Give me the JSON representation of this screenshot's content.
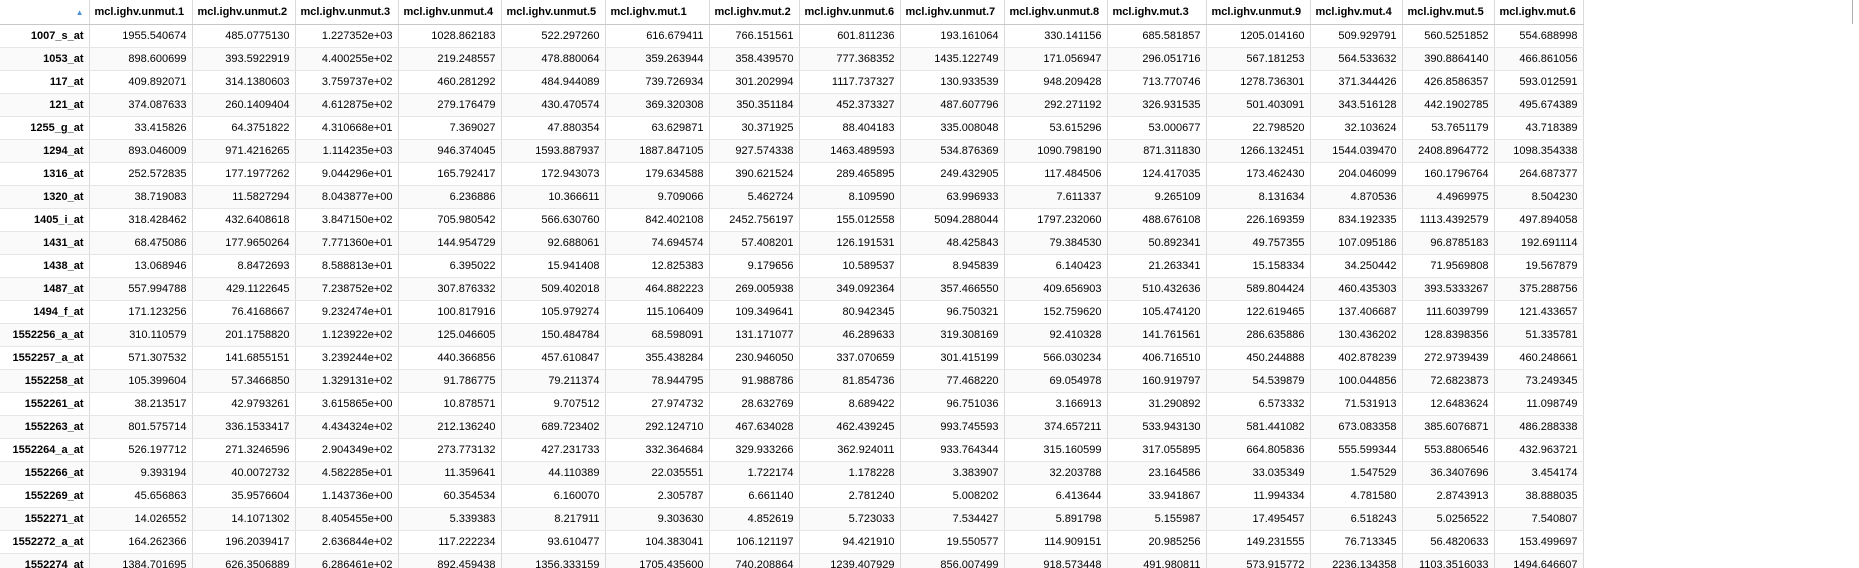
{
  "table": {
    "columns": [
      "mcl.ighv.unmut.1",
      "mcl.ighv.unmut.2",
      "mcl.ighv.unmut.3",
      "mcl.ighv.unmut.4",
      "mcl.ighv.unmut.5",
      "mcl.ighv.mut.1",
      "mcl.ighv.mut.2",
      "mcl.ighv.unmut.6",
      "mcl.ighv.unmut.7",
      "mcl.ighv.unmut.8",
      "mcl.ighv.mut.3",
      "mcl.ighv.unmut.9",
      "mcl.ighv.mut.4",
      "mcl.ighv.mut.5",
      "mcl.ighv.mut.6"
    ],
    "sorted_column_index": 0,
    "rows": [
      {
        "name": "1007_s_at",
        "values": [
          "1955.540674",
          "485.0775130",
          "1.227352e+03",
          "1028.862183",
          "522.297260",
          "616.679411",
          "766.151561",
          "601.811236",
          "193.161064",
          "330.141156",
          "685.581857",
          "1205.014160",
          "509.929791",
          "560.5251852",
          "554.688998"
        ]
      },
      {
        "name": "1053_at",
        "values": [
          "898.600699",
          "393.5922919",
          "4.400255e+02",
          "219.248557",
          "478.880064",
          "359.263944",
          "358.439570",
          "777.368352",
          "1435.122749",
          "171.056947",
          "296.051716",
          "567.181253",
          "564.533632",
          "390.8864140",
          "466.861056"
        ]
      },
      {
        "name": "117_at",
        "values": [
          "409.892071",
          "314.1380603",
          "3.759737e+02",
          "460.281292",
          "484.944089",
          "739.726934",
          "301.202994",
          "1117.737327",
          "130.933539",
          "948.209428",
          "713.770746",
          "1278.736301",
          "371.344426",
          "426.8586357",
          "593.012591"
        ]
      },
      {
        "name": "121_at",
        "values": [
          "374.087633",
          "260.1409404",
          "4.612875e+02",
          "279.176479",
          "430.470574",
          "369.320308",
          "350.351184",
          "452.373327",
          "487.607796",
          "292.271192",
          "326.931535",
          "501.403091",
          "343.516128",
          "442.1902785",
          "495.674389"
        ]
      },
      {
        "name": "1255_g_at",
        "values": [
          "33.415826",
          "64.3751822",
          "4.310668e+01",
          "7.369027",
          "47.880354",
          "63.629871",
          "30.371925",
          "88.404183",
          "335.008048",
          "53.615296",
          "53.000677",
          "22.798520",
          "32.103624",
          "53.7651179",
          "43.718389"
        ]
      },
      {
        "name": "1294_at",
        "values": [
          "893.046009",
          "971.4216265",
          "1.114235e+03",
          "946.374045",
          "1593.887937",
          "1887.847105",
          "927.574338",
          "1463.489593",
          "534.876369",
          "1090.798190",
          "871.311830",
          "1266.132451",
          "1544.039470",
          "2408.8964772",
          "1098.354338"
        ]
      },
      {
        "name": "1316_at",
        "values": [
          "252.572835",
          "177.1977262",
          "9.044296e+01",
          "165.792417",
          "172.943073",
          "179.634588",
          "390.621524",
          "289.465895",
          "249.432905",
          "117.484506",
          "124.417035",
          "173.462430",
          "204.046099",
          "160.1796764",
          "264.687377"
        ]
      },
      {
        "name": "1320_at",
        "values": [
          "38.719083",
          "11.5827294",
          "8.043877e+00",
          "6.236886",
          "10.366611",
          "9.709066",
          "5.462724",
          "8.109590",
          "63.996933",
          "7.611337",
          "9.265109",
          "8.131634",
          "4.870536",
          "4.4969975",
          "8.504230"
        ]
      },
      {
        "name": "1405_i_at",
        "values": [
          "318.428462",
          "432.6408618",
          "3.847150e+02",
          "705.980542",
          "566.630760",
          "842.402108",
          "2452.756197",
          "155.012558",
          "5094.288044",
          "1797.232060",
          "488.676108",
          "226.169359",
          "834.192335",
          "1113.4392579",
          "497.894058"
        ]
      },
      {
        "name": "1431_at",
        "values": [
          "68.475086",
          "177.9650264",
          "7.771360e+01",
          "144.954729",
          "92.688061",
          "74.694574",
          "57.408201",
          "126.191531",
          "48.425843",
          "79.384530",
          "50.892341",
          "49.757355",
          "107.095186",
          "96.8785183",
          "192.691114"
        ]
      },
      {
        "name": "1438_at",
        "values": [
          "13.068946",
          "8.8472693",
          "8.588813e+01",
          "6.395022",
          "15.941408",
          "12.825383",
          "9.179656",
          "10.589537",
          "8.945839",
          "6.140423",
          "21.263341",
          "15.158334",
          "34.250442",
          "71.9569808",
          "19.567879"
        ]
      },
      {
        "name": "1487_at",
        "values": [
          "557.994788",
          "429.1122645",
          "7.238752e+02",
          "307.876332",
          "509.402018",
          "464.882223",
          "269.005938",
          "349.092364",
          "357.466550",
          "409.656903",
          "510.432636",
          "589.804424",
          "460.435303",
          "393.5333267",
          "375.288756"
        ]
      },
      {
        "name": "1494_f_at",
        "values": [
          "171.123256",
          "76.4168667",
          "9.232474e+01",
          "100.817916",
          "105.979274",
          "115.106409",
          "109.349641",
          "80.942345",
          "96.750321",
          "152.759620",
          "105.474120",
          "122.619465",
          "137.406687",
          "111.6039799",
          "121.433657"
        ]
      },
      {
        "name": "1552256_a_at",
        "values": [
          "310.110579",
          "201.1758820",
          "1.123922e+02",
          "125.046605",
          "150.484784",
          "68.598091",
          "131.171077",
          "46.289633",
          "319.308169",
          "92.410328",
          "141.761561",
          "286.635886",
          "130.436202",
          "128.8398356",
          "51.335781"
        ]
      },
      {
        "name": "1552257_a_at",
        "values": [
          "571.307532",
          "141.6855151",
          "3.239244e+02",
          "440.366856",
          "457.610847",
          "355.438284",
          "230.946050",
          "337.070659",
          "301.415199",
          "566.030234",
          "406.716510",
          "450.244888",
          "402.878239",
          "272.9739439",
          "460.248661"
        ]
      },
      {
        "name": "1552258_at",
        "values": [
          "105.399604",
          "57.3466850",
          "1.329131e+02",
          "91.786775",
          "79.211374",
          "78.944795",
          "91.988786",
          "81.854736",
          "77.468220",
          "69.054978",
          "160.919797",
          "54.539879",
          "100.044856",
          "72.6823873",
          "73.249345"
        ]
      },
      {
        "name": "1552261_at",
        "values": [
          "38.213517",
          "42.9793261",
          "3.615865e+00",
          "10.878571",
          "9.707512",
          "27.974732",
          "28.632769",
          "8.689422",
          "96.751036",
          "3.166913",
          "31.290892",
          "6.573332",
          "71.531913",
          "12.6483624",
          "11.098749"
        ]
      },
      {
        "name": "1552263_at",
        "values": [
          "801.575714",
          "336.1533417",
          "4.434324e+02",
          "212.136240",
          "689.723402",
          "292.124710",
          "467.634028",
          "462.439245",
          "993.745593",
          "374.657211",
          "533.943130",
          "581.441082",
          "673.083358",
          "385.6076871",
          "486.288338"
        ]
      },
      {
        "name": "1552264_a_at",
        "values": [
          "526.197712",
          "271.3246596",
          "2.904349e+02",
          "273.773132",
          "427.231733",
          "332.364684",
          "329.933266",
          "362.924011",
          "933.764344",
          "315.160599",
          "317.055895",
          "664.805836",
          "555.599344",
          "553.8806546",
          "432.963721"
        ]
      },
      {
        "name": "1552266_at",
        "values": [
          "9.393194",
          "40.0072732",
          "4.582285e+01",
          "11.359641",
          "44.110389",
          "22.035551",
          "1.722174",
          "1.178228",
          "3.383907",
          "32.203788",
          "23.164586",
          "33.035349",
          "1.547529",
          "36.3407696",
          "3.454174"
        ]
      },
      {
        "name": "1552269_at",
        "values": [
          "45.656863",
          "35.9576604",
          "1.143736e+00",
          "60.354534",
          "6.160070",
          "2.305787",
          "6.661140",
          "2.781240",
          "5.008202",
          "6.413644",
          "33.941867",
          "11.994334",
          "4.781580",
          "2.8743913",
          "38.888035"
        ]
      },
      {
        "name": "1552271_at",
        "values": [
          "14.026552",
          "14.1071302",
          "8.405455e+00",
          "5.339383",
          "8.217911",
          "9.303630",
          "4.852619",
          "5.723033",
          "7.534427",
          "5.891798",
          "5.155987",
          "17.495457",
          "6.518243",
          "5.0256522",
          "7.540807"
        ]
      },
      {
        "name": "1552272_a_at",
        "values": [
          "164.262366",
          "196.2039417",
          "2.636844e+02",
          "117.222234",
          "93.610477",
          "104.383041",
          "106.121197",
          "94.421910",
          "19.550577",
          "114.909151",
          "20.985256",
          "149.231555",
          "76.713345",
          "56.4820633",
          "153.499697"
        ]
      },
      {
        "name": "1552274_at",
        "values": [
          "1384.701695",
          "626.3506889",
          "6.286461e+02",
          "892.459438",
          "1356.333159",
          "1705.435600",
          "740.208864",
          "1239.407929",
          "856.007499",
          "918.573448",
          "491.980811",
          "573.915772",
          "2236.134358",
          "1103.3516033",
          "1494.646607"
        ]
      }
    ]
  }
}
